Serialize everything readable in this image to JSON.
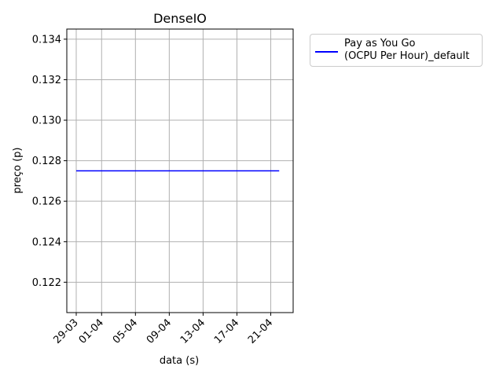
{
  "chart_data": {
    "type": "line",
    "title": "DenseIO",
    "xlabel": "data (s)",
    "ylabel": "preço (p)",
    "x_tick_labels": [
      "29-03",
      "01-04",
      "05-04",
      "09-04",
      "13-04",
      "17-04",
      "21-04"
    ],
    "y_tick_labels": [
      "0.122",
      "0.124",
      "0.126",
      "0.128",
      "0.130",
      "0.132",
      "0.134"
    ],
    "ylim": [
      0.1205,
      0.1345
    ],
    "grid": true,
    "legend_position": "outside upper right",
    "series": [
      {
        "name": "Pay as You Go\n(OCPU Per Hour)_default",
        "color": "#0000ff",
        "x": [
          "29-03",
          "22-04"
        ],
        "values": [
          0.1275,
          0.1275
        ]
      }
    ]
  }
}
